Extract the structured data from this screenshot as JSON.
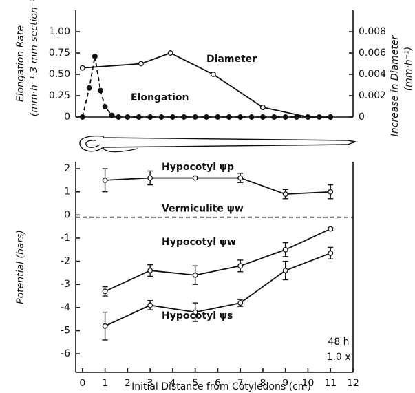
{
  "chart_data": [
    {
      "type": "line",
      "ylabel": "Elongation Rate",
      "ylabel_units": "(mm·h⁻¹·3 mm section⁻¹)",
      "y2label": "Increase in Diameter",
      "y2label_units": "(mm·h⁻¹)",
      "xlim": [
        -0.3,
        12
      ],
      "ylim": [
        0,
        1.25
      ],
      "yticks": [
        0,
        0.25,
        {
          "value": 0.5,
          "label": "0.50"
        },
        0.75,
        {
          "value": 1,
          "label": "1.00"
        }
      ],
      "y2lim": [
        0,
        0.01
      ],
      "y2ticks": [
        0,
        0.002,
        0.004,
        0.006,
        0.008
      ],
      "series": [
        {
          "name": "Diameter",
          "axis": "y2",
          "color": "#111",
          "dashed": false,
          "filled": false,
          "x": [
            0,
            2.6,
            3.9,
            5.8,
            8,
            10,
            11
          ],
          "values": [
            0.0046,
            0.005,
            0.006,
            0.004,
            0.0009,
            0,
            0
          ]
        },
        {
          "name": "Elongation",
          "color": "#111",
          "dashed": true,
          "filled": true,
          "x": [
            0,
            0.3,
            0.55,
            0.8,
            1.0,
            1.3,
            1.6,
            2,
            2.5,
            3,
            3.5,
            4,
            4.5,
            5,
            5.5,
            6,
            6.5,
            7,
            7.5,
            8,
            8.5,
            9,
            9.5,
            10,
            10.5,
            11
          ],
          "values": [
            0,
            0.34,
            0.71,
            0.31,
            0.12,
            0.02,
            0,
            0,
            0,
            0,
            0,
            0,
            0,
            0,
            0,
            0,
            0,
            0,
            0,
            0,
            0,
            0,
            0,
            0,
            0,
            0
          ]
        }
      ]
    },
    {
      "type": "line",
      "ylabel": "Potential (bars)",
      "xlabel": "Initial Distance from Cotyledons (cm)",
      "xlim": [
        -0.3,
        12
      ],
      "xticks": [
        0,
        1,
        2,
        3,
        4,
        5,
        6,
        7,
        8,
        9,
        10,
        11,
        12
      ],
      "ylim": [
        -6.8,
        2.3
      ],
      "yticks": [
        2,
        1,
        0,
        -1,
        -2,
        -3,
        -4,
        -5,
        -6
      ],
      "reference_lines": [
        {
          "name": "Vermiculite ψw",
          "value": -0.1
        }
      ],
      "annotations": [
        "48 h",
        "1.0 x"
      ],
      "series": [
        {
          "name": "Hypocotyl ψp",
          "color": "#111",
          "x": [
            1,
            3,
            5,
            7,
            9,
            11
          ],
          "values": [
            1.5,
            1.6,
            1.6,
            1.6,
            0.9,
            1.0
          ],
          "errors": [
            0.5,
            0.3,
            0,
            0.2,
            0.2,
            0.3
          ]
        },
        {
          "name": "Hypocotyl ψw",
          "color": "#111",
          "x": [
            1,
            3,
            5,
            7,
            9,
            11
          ],
          "values": [
            -3.3,
            -2.4,
            -2.6,
            -2.2,
            -1.5,
            -0.6
          ],
          "errors": [
            0.2,
            0.25,
            0.4,
            0.25,
            0.3,
            0.05
          ]
        },
        {
          "name": "Hypocotyl ψs",
          "color": "#111",
          "x": [
            1,
            3,
            5,
            7,
            9,
            11
          ],
          "values": [
            -4.8,
            -3.9,
            -4.2,
            -3.8,
            -2.4,
            -1.65
          ],
          "errors": [
            0.6,
            0.2,
            0.4,
            0.15,
            0.4,
            0.25
          ]
        }
      ]
    }
  ]
}
